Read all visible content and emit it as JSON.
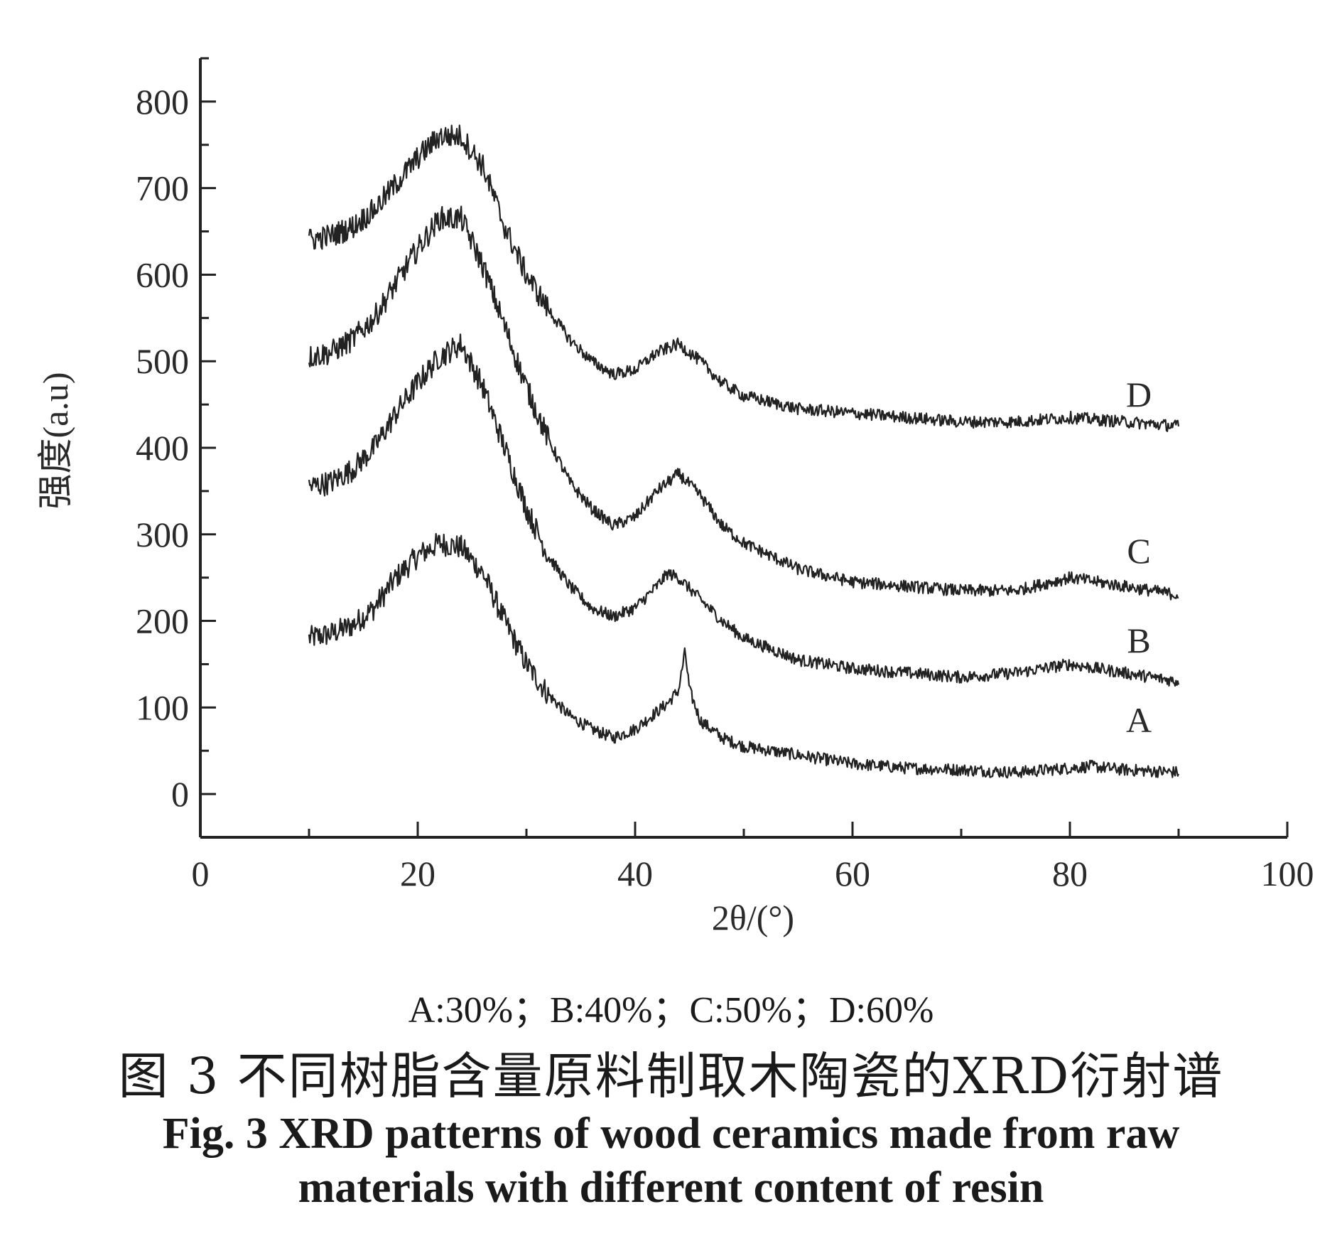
{
  "chart_data": {
    "type": "line",
    "title": "",
    "xlabel": "2θ/(°)",
    "ylabel": "强度(a.u)",
    "xlim": [
      0,
      100
    ],
    "ylim": [
      -50,
      850
    ],
    "x_ticks": [
      0,
      20,
      40,
      60,
      80,
      100
    ],
    "y_ticks": [
      0,
      100,
      200,
      300,
      400,
      500,
      600,
      700,
      800
    ],
    "x_tick_labels": [
      "0",
      "20",
      "40",
      "60",
      "80",
      "100"
    ],
    "y_tick_labels": [
      "0",
      "100",
      "200",
      "300",
      "400",
      "500",
      "600",
      "700",
      "800"
    ],
    "grid": false,
    "line_color": "#222222",
    "series": [
      {
        "name": "A",
        "x": [
          10,
          12,
          14,
          16,
          18,
          20,
          22,
          24,
          26,
          28,
          30,
          32,
          34,
          36,
          38,
          40,
          42,
          43,
          44,
          44.6,
          45,
          46,
          48,
          50,
          55,
          60,
          65,
          70,
          75,
          80,
          82,
          85,
          90
        ],
        "y": [
          180,
          185,
          195,
          215,
          250,
          275,
          290,
          285,
          255,
          200,
          150,
          115,
          90,
          75,
          65,
          75,
          95,
          105,
          120,
          165,
          120,
          85,
          65,
          55,
          45,
          35,
          30,
          28,
          25,
          30,
          32,
          28,
          25
        ]
      },
      {
        "name": "B",
        "x": [
          10,
          12,
          14,
          16,
          18,
          20,
          22,
          24,
          26,
          28,
          30,
          32,
          34,
          36,
          38,
          40,
          42,
          43,
          44,
          46,
          48,
          50,
          55,
          60,
          65,
          70,
          75,
          80,
          85,
          90
        ],
        "y": [
          355,
          360,
          375,
          400,
          440,
          475,
          505,
          520,
          470,
          400,
          330,
          275,
          240,
          215,
          205,
          215,
          240,
          255,
          250,
          225,
          200,
          180,
          155,
          145,
          140,
          135,
          140,
          150,
          140,
          130
        ]
      },
      {
        "name": "C",
        "x": [
          10,
          12,
          14,
          16,
          18,
          20,
          22,
          24,
          26,
          28,
          30,
          32,
          34,
          36,
          38,
          40,
          42,
          44,
          46,
          48,
          50,
          55,
          60,
          65,
          70,
          75,
          80,
          85,
          90
        ],
        "y": [
          505,
          510,
          525,
          550,
          590,
          630,
          665,
          665,
          610,
          540,
          470,
          410,
          360,
          330,
          310,
          320,
          350,
          370,
          345,
          310,
          290,
          260,
          245,
          240,
          235,
          235,
          250,
          240,
          230
        ]
      },
      {
        "name": "D",
        "x": [
          10,
          12,
          14,
          16,
          18,
          20,
          22,
          24,
          26,
          28,
          30,
          32,
          34,
          36,
          38,
          40,
          42,
          44,
          46,
          48,
          50,
          55,
          60,
          65,
          70,
          75,
          80,
          85,
          90
        ],
        "y": [
          640,
          645,
          655,
          675,
          705,
          735,
          760,
          760,
          725,
          655,
          600,
          560,
          525,
          500,
          485,
          490,
          510,
          520,
          500,
          475,
          460,
          445,
          440,
          435,
          430,
          430,
          435,
          430,
          425
        ]
      }
    ]
  },
  "series_labels": {
    "A": "A",
    "B": "B",
    "C": "C",
    "D": "D"
  },
  "legend_note": "A:30%；B:40%；C:50%；D:60%",
  "caption": {
    "cn": "图 3   不同树脂含量原料制取木陶瓷的XRD衍射谱",
    "en_line1": "Fig. 3   XRD patterns of wood ceramics made from raw",
    "en_line2": "materials with different content of resin"
  }
}
